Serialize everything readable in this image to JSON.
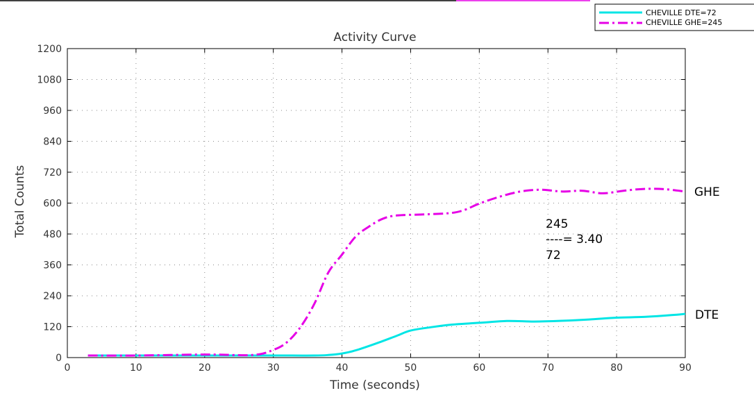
{
  "chart_data": {
    "type": "line",
    "title": "Activity Curve",
    "xlabel": "Time (seconds)",
    "ylabel": "Total Counts",
    "xlim": [
      0,
      90
    ],
    "ylim": [
      0,
      1200
    ],
    "xticks": [
      0,
      10,
      20,
      30,
      40,
      50,
      60,
      70,
      80,
      90
    ],
    "yticks": [
      0,
      120,
      240,
      360,
      480,
      600,
      720,
      840,
      960,
      1080,
      1200
    ],
    "grid": true,
    "legend_position": "top-right",
    "series": [
      {
        "name": "CHEVILLE DTE=72",
        "color": "#00e5e5",
        "style": "solid",
        "x": [
          3,
          10,
          20,
          30,
          36,
          38,
          40,
          42,
          45,
          48,
          50,
          53,
          56,
          60,
          64,
          68,
          72,
          76,
          80,
          84,
          88,
          90
        ],
        "y": [
          8,
          8,
          8,
          8,
          8,
          10,
          16,
          28,
          55,
          85,
          105,
          118,
          128,
          135,
          142,
          140,
          143,
          148,
          155,
          158,
          165,
          170
        ]
      },
      {
        "name": "CHEVILLE GHE=245",
        "color": "#e600e6",
        "style": "dashdot",
        "x": [
          3,
          10,
          20,
          27,
          30,
          32,
          34,
          36,
          38,
          40,
          42,
          44,
          46,
          48,
          52,
          56,
          58,
          60,
          63,
          66,
          69,
          72,
          75,
          78,
          81,
          84,
          87,
          90
        ],
        "y": [
          8,
          8,
          12,
          10,
          30,
          60,
          120,
          210,
          330,
          400,
          470,
          510,
          540,
          552,
          556,
          562,
          575,
          598,
          625,
          645,
          652,
          645,
          648,
          638,
          648,
          655,
          654,
          645
        ]
      }
    ],
    "annotations": {
      "ghe_label": "GHE",
      "dte_label": "DTE",
      "ratio_numerator": "245",
      "ratio_line": "----= 3.40",
      "ratio_denominator": "72"
    }
  }
}
